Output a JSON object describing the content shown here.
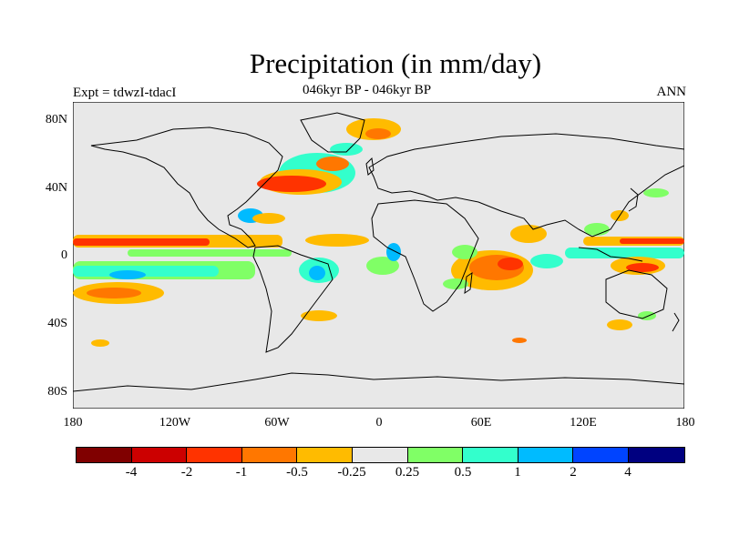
{
  "header": {
    "title": "Precipitation (in mm/day)",
    "subtitle": "046kyr BP - 046kyr BP",
    "experiment": "Expt = tdwzI-tdacI",
    "season": "ANN"
  },
  "axes": {
    "lat_labels": [
      "80N",
      "40N",
      "0",
      "40S",
      "80S"
    ],
    "lon_labels": [
      "180",
      "120W",
      "60W",
      "0",
      "60E",
      "120E",
      "180"
    ]
  },
  "colorbar": {
    "colors": [
      "#800000",
      "#cc0000",
      "#ff3300",
      "#ff7700",
      "#ffbb00",
      "#e8e8e8",
      "#80ff66",
      "#33ffcc",
      "#00bbff",
      "#0044ff",
      "#000080"
    ],
    "labels": [
      "-4",
      "-2",
      "-1",
      "-0.5",
      "-0.25",
      "0.25",
      "0.5",
      "1",
      "2",
      "4"
    ]
  },
  "map": {
    "background": "#e8e8e8",
    "projection": "cylindrical equidistant",
    "lon_range": [
      -180,
      180
    ],
    "lat_range": [
      -90,
      90
    ]
  }
}
